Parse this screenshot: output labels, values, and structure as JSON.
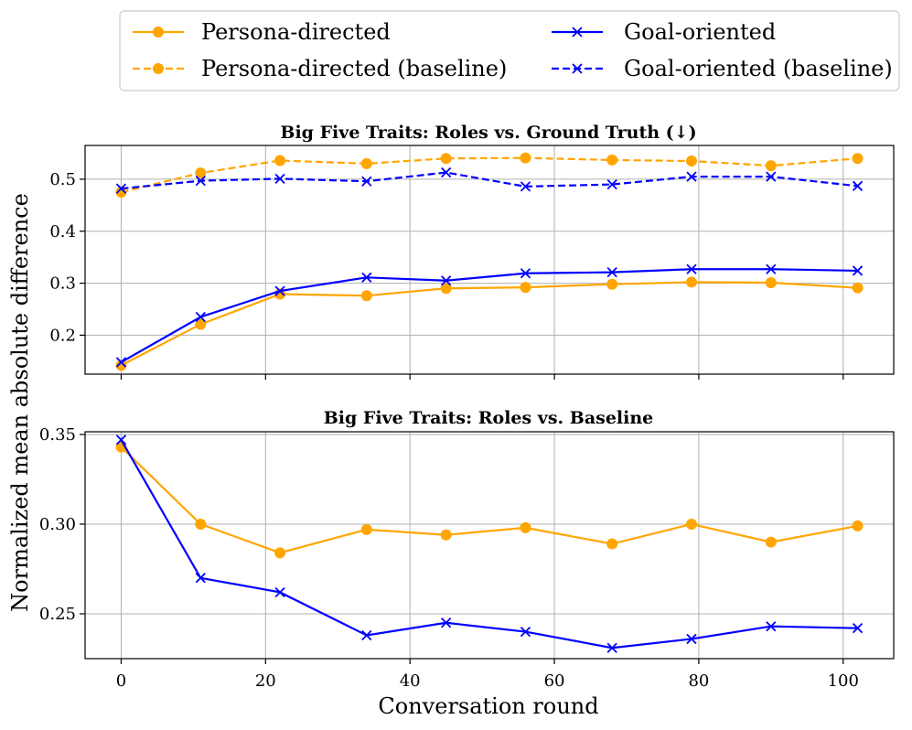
{
  "legend": [
    {
      "label": "Persona-directed",
      "color": "#FFA500",
      "marker": "circle",
      "dash": false
    },
    {
      "label": "Persona-directed (baseline)",
      "color": "#FFA500",
      "marker": "circle",
      "dash": true
    },
    {
      "label": "Goal-oriented",
      "color": "#0000FF",
      "marker": "x",
      "dash": false
    },
    {
      "label": "Goal-oriented (baseline)",
      "color": "#0000FF",
      "marker": "x",
      "dash": true
    }
  ],
  "xlabel": "Conversation round",
  "ylabel": "Normalized mean absolute difference",
  "chart_data": [
    {
      "type": "line",
      "title": "Big Five Traits: Roles vs. Ground Truth (↓)",
      "x": [
        0,
        11,
        22,
        34,
        45,
        56,
        68,
        79,
        90,
        102
      ],
      "xlim": [
        -5,
        107
      ],
      "ylim": [
        0.125,
        0.565
      ],
      "yticks": [
        0.2,
        0.3,
        0.4,
        0.5
      ],
      "ytick_labels": [
        "0.2",
        "0.3",
        "0.4",
        "0.5"
      ],
      "grid": true,
      "series": [
        {
          "name": "Persona-directed",
          "color": "#FFA500",
          "marker": "circle",
          "dash": false,
          "values": [
            0.142,
            0.221,
            0.279,
            0.276,
            0.29,
            0.292,
            0.298,
            0.302,
            0.301,
            0.291
          ]
        },
        {
          "name": "Persona-directed (baseline)",
          "color": "#FFA500",
          "marker": "circle",
          "dash": true,
          "values": [
            0.475,
            0.512,
            0.536,
            0.53,
            0.54,
            0.541,
            0.537,
            0.535,
            0.526,
            0.54
          ]
        },
        {
          "name": "Goal-oriented",
          "color": "#0000FF",
          "marker": "x",
          "dash": false,
          "values": [
            0.148,
            0.235,
            0.285,
            0.311,
            0.305,
            0.319,
            0.321,
            0.327,
            0.327,
            0.324
          ]
        },
        {
          "name": "Goal-oriented (baseline)",
          "color": "#0000FF",
          "marker": "x",
          "dash": true,
          "values": [
            0.482,
            0.497,
            0.501,
            0.496,
            0.513,
            0.486,
            0.49,
            0.505,
            0.505,
            0.487
          ]
        }
      ]
    },
    {
      "type": "line",
      "title": "Big Five Traits: Roles vs. Baseline",
      "x": [
        0,
        11,
        22,
        34,
        45,
        56,
        68,
        79,
        90,
        102
      ],
      "xlim": [
        -5,
        107
      ],
      "ylim": [
        0.225,
        0.3515
      ],
      "yticks": [
        0.25,
        0.3,
        0.35
      ],
      "ytick_labels": [
        "0.25",
        "0.30",
        "0.35"
      ],
      "xticks": [
        0,
        20,
        40,
        60,
        80,
        100
      ],
      "xtick_labels": [
        "0",
        "20",
        "40",
        "60",
        "80",
        "100"
      ],
      "grid": true,
      "series": [
        {
          "name": "Persona-directed",
          "color": "#FFA500",
          "marker": "circle",
          "dash": false,
          "values": [
            0.343,
            0.3,
            0.284,
            0.297,
            0.294,
            0.298,
            0.289,
            0.3,
            0.29,
            0.299
          ]
        },
        {
          "name": "Goal-oriented",
          "color": "#0000FF",
          "marker": "x",
          "dash": false,
          "values": [
            0.347,
            0.27,
            0.262,
            0.238,
            0.245,
            0.24,
            0.231,
            0.236,
            0.243,
            0.242
          ]
        }
      ]
    }
  ]
}
